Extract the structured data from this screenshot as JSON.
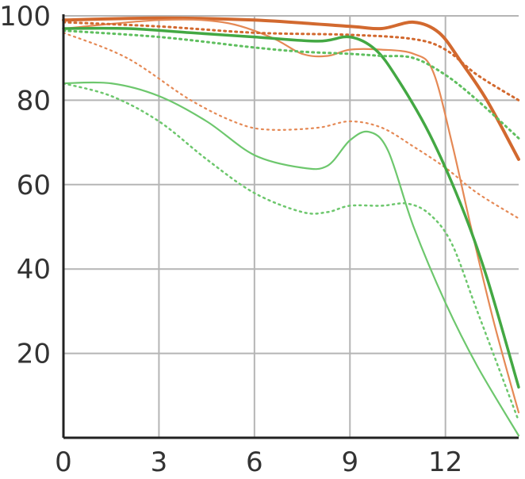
{
  "chart_data": {
    "type": "line",
    "title": "",
    "xlabel": "",
    "ylabel": "",
    "xlim": [
      0,
      14.3
    ],
    "ylim": [
      0,
      100
    ],
    "grid": true,
    "legend": "none",
    "x_ticks": [
      {
        "value": 0,
        "label": "0"
      },
      {
        "value": 3,
        "label": "3"
      },
      {
        "value": 6,
        "label": "6"
      },
      {
        "value": 9,
        "label": "9"
      },
      {
        "value": 12,
        "label": "12"
      }
    ],
    "y_ticks": [
      {
        "value": 20,
        "label": "20"
      },
      {
        "value": 40,
        "label": "40"
      },
      {
        "value": 60,
        "label": "60"
      },
      {
        "value": 80,
        "label": "80"
      },
      {
        "value": 100,
        "label": "100"
      }
    ],
    "series": [
      {
        "color": "#d2692f",
        "style": "solid",
        "width": 4,
        "points": [
          [
            0,
            99
          ],
          [
            3,
            99.5
          ],
          [
            6,
            99
          ],
          [
            9,
            97.5
          ],
          [
            10,
            97
          ],
          [
            11,
            98.5
          ],
          [
            11.8,
            96
          ],
          [
            12.5,
            89
          ],
          [
            13.3,
            80
          ],
          [
            14.3,
            66
          ]
        ]
      },
      {
        "color": "#e58955",
        "style": "solid",
        "width": 2.2,
        "points": [
          [
            0,
            97
          ],
          [
            3,
            99
          ],
          [
            5,
            98.5
          ],
          [
            6.5,
            95
          ],
          [
            7.5,
            91
          ],
          [
            8.3,
            90.5
          ],
          [
            9,
            92
          ],
          [
            10,
            92
          ],
          [
            11,
            91
          ],
          [
            11.6,
            87
          ],
          [
            12.2,
            70
          ],
          [
            12.8,
            50
          ],
          [
            13.5,
            28
          ],
          [
            14.3,
            6
          ]
        ]
      },
      {
        "color": "#d2692f",
        "style": "dotted",
        "width": 3,
        "points": [
          [
            0,
            98.5
          ],
          [
            3,
            97.5
          ],
          [
            6,
            96
          ],
          [
            9,
            95.5
          ],
          [
            11,
            94.5
          ],
          [
            12,
            92
          ],
          [
            13,
            86
          ],
          [
            14.3,
            80
          ]
        ]
      },
      {
        "color": "#e58955",
        "style": "dotted",
        "width": 2.2,
        "points": [
          [
            0,
            96
          ],
          [
            2,
            90
          ],
          [
            4,
            80
          ],
          [
            5.5,
            74.5
          ],
          [
            6.5,
            73
          ],
          [
            8,
            73.5
          ],
          [
            9,
            75
          ],
          [
            10,
            73.5
          ],
          [
            11,
            69
          ],
          [
            12,
            64
          ],
          [
            13,
            58
          ],
          [
            14.3,
            52
          ]
        ]
      },
      {
        "color": "#43a843",
        "style": "solid",
        "width": 3.5,
        "points": [
          [
            0,
            97
          ],
          [
            2,
            97
          ],
          [
            4,
            96
          ],
          [
            6,
            95
          ],
          [
            8,
            94
          ],
          [
            9,
            95
          ],
          [
            9.8,
            92
          ],
          [
            10.5,
            85
          ],
          [
            11.5,
            72
          ],
          [
            12.5,
            55
          ],
          [
            13.3,
            38
          ],
          [
            14.3,
            12
          ]
        ]
      },
      {
        "color": "#5fbf5f",
        "style": "dotted",
        "width": 3,
        "points": [
          [
            0,
            96.5
          ],
          [
            3,
            95
          ],
          [
            6,
            92.5
          ],
          [
            7.5,
            91.5
          ],
          [
            9,
            91
          ],
          [
            10,
            90.5
          ],
          [
            11,
            90
          ],
          [
            12,
            86
          ],
          [
            13,
            80
          ],
          [
            14.3,
            71
          ]
        ]
      },
      {
        "color": "#6dc76d",
        "style": "solid",
        "width": 2.2,
        "points": [
          [
            0,
            84
          ],
          [
            1.5,
            84
          ],
          [
            3,
            81
          ],
          [
            4.5,
            75
          ],
          [
            6,
            67
          ],
          [
            7.5,
            64
          ],
          [
            8.3,
            64.5
          ],
          [
            9,
            70.5
          ],
          [
            9.6,
            72.5
          ],
          [
            10.2,
            68
          ],
          [
            11,
            50
          ],
          [
            12,
            32
          ],
          [
            13,
            17
          ],
          [
            14.3,
            0.5
          ]
        ]
      },
      {
        "color": "#6dc76d",
        "style": "dotted",
        "width": 2.5,
        "points": [
          [
            0,
            84
          ],
          [
            1.5,
            81
          ],
          [
            3,
            75
          ],
          [
            4.5,
            66
          ],
          [
            6,
            58
          ],
          [
            7.5,
            53.5
          ],
          [
            8.3,
            53.5
          ],
          [
            9,
            55
          ],
          [
            10,
            55
          ],
          [
            10.8,
            55.5
          ],
          [
            11.5,
            53
          ],
          [
            12.2,
            46
          ],
          [
            13,
            30
          ],
          [
            14.3,
            4
          ]
        ]
      }
    ]
  }
}
